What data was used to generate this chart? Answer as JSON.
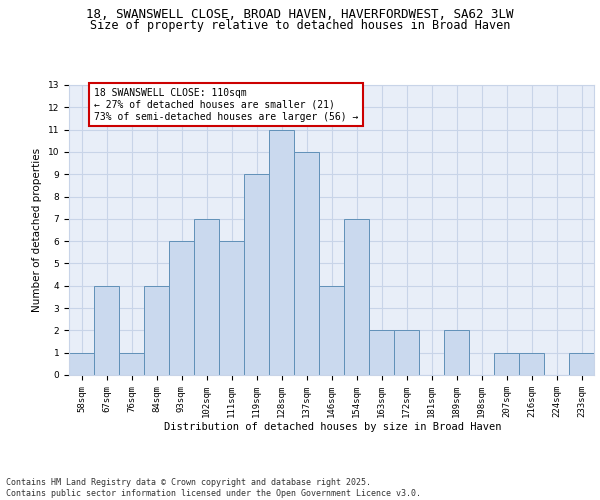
{
  "title_line1": "18, SWANSWELL CLOSE, BROAD HAVEN, HAVERFORDWEST, SA62 3LW",
  "title_line2": "Size of property relative to detached houses in Broad Haven",
  "xlabel": "Distribution of detached houses by size in Broad Haven",
  "ylabel": "Number of detached properties",
  "categories": [
    "58sqm",
    "67sqm",
    "76sqm",
    "84sqm",
    "93sqm",
    "102sqm",
    "111sqm",
    "119sqm",
    "128sqm",
    "137sqm",
    "146sqm",
    "154sqm",
    "163sqm",
    "172sqm",
    "181sqm",
    "189sqm",
    "198sqm",
    "207sqm",
    "216sqm",
    "224sqm",
    "233sqm"
  ],
  "values": [
    1,
    4,
    1,
    4,
    6,
    7,
    6,
    9,
    11,
    10,
    4,
    7,
    2,
    2,
    0,
    2,
    0,
    1,
    1,
    0,
    1
  ],
  "bar_color": "#cad9ee",
  "bar_edge_color": "#6090b8",
  "annotation_text": "18 SWANSWELL CLOSE: 110sqm\n← 27% of detached houses are smaller (21)\n73% of semi-detached houses are larger (56) →",
  "annotation_box_color": "#ffffff",
  "annotation_border_color": "#cc0000",
  "ylim": [
    0,
    13
  ],
  "yticks": [
    0,
    1,
    2,
    3,
    4,
    5,
    6,
    7,
    8,
    9,
    10,
    11,
    12,
    13
  ],
  "grid_color": "#c8d4e8",
  "background_color": "#e8eef8",
  "footer_text": "Contains HM Land Registry data © Crown copyright and database right 2025.\nContains public sector information licensed under the Open Government Licence v3.0.",
  "title_fontsize": 9,
  "subtitle_fontsize": 8.5,
  "axis_label_fontsize": 7.5,
  "tick_fontsize": 6.5,
  "annotation_fontsize": 7,
  "footer_fontsize": 6
}
